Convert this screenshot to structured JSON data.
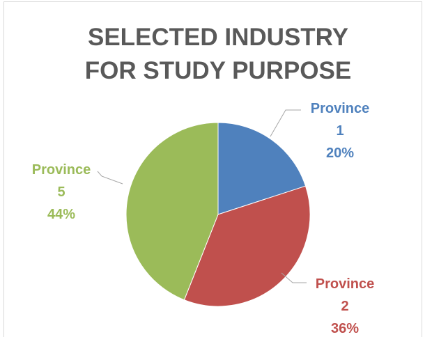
{
  "chart_data": {
    "type": "pie",
    "title": "SELECTED INDUSTRY FOR STUDY PURPOSE",
    "categories": [
      "Province 1",
      "Province 2",
      "Province 5"
    ],
    "values": [
      20,
      36,
      44
    ],
    "value_labels": [
      "20%",
      "36%",
      "44%"
    ],
    "colors": [
      "#4f81bd",
      "#c0504d",
      "#9bbb59"
    ]
  }
}
